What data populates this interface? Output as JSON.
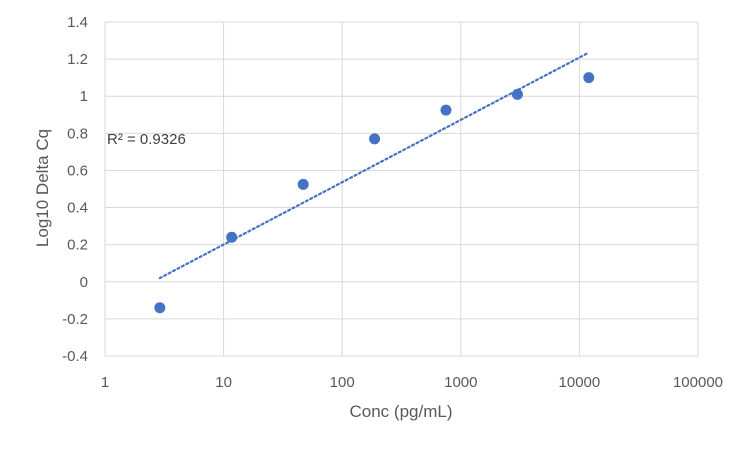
{
  "chart_data": {
    "type": "scatter",
    "xlabel": "Conc (pg/mL)",
    "ylabel": "Log10 Delta Cq",
    "x_scale": "log",
    "xlim": [
      1,
      100000
    ],
    "ylim": [
      -0.4,
      1.4
    ],
    "x_ticks": [
      "1",
      "10",
      "100",
      "1000",
      "10000",
      "100000"
    ],
    "y_ticks": [
      "-0.4",
      "-0.2",
      "0",
      "0.2",
      "0.4",
      "0.6",
      "0.8",
      "1",
      "1.2",
      "1.4"
    ],
    "grid": true,
    "points": [
      {
        "x": 2.9,
        "y": -0.14
      },
      {
        "x": 11.7,
        "y": 0.24
      },
      {
        "x": 46.9,
        "y": 0.525
      },
      {
        "x": 187.5,
        "y": 0.77
      },
      {
        "x": 750,
        "y": 0.925
      },
      {
        "x": 3000,
        "y": 1.01
      },
      {
        "x": 12000,
        "y": 1.1
      }
    ],
    "trendline": {
      "type": "logarithmic",
      "x0": 2.9,
      "y0": 0.02,
      "x1": 12000,
      "y1": 1.235,
      "style": "dotted"
    },
    "annotation": "R² = 0.9326",
    "colors": {
      "marker": "#4472C4",
      "trendline": "#4472C4",
      "grid": "#D9D9D9",
      "text": "#595959"
    }
  }
}
